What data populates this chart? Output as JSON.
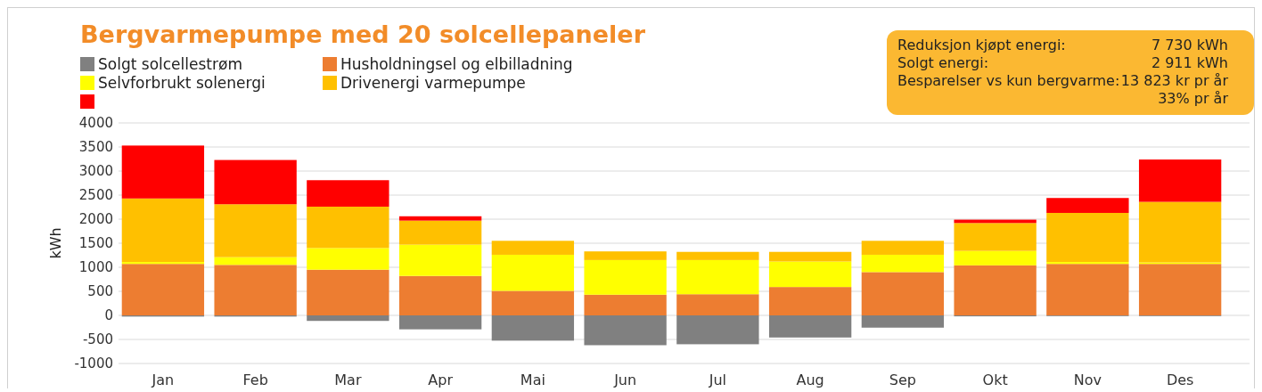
{
  "chart_data": {
    "type": "bar",
    "title": "Bergvarmepumpe med 20 solcellepaneler",
    "ylabel": "kWh",
    "stacked": true,
    "grid": "y",
    "legend": "top left",
    "categories": [
      "Jan",
      "Feb",
      "Mar",
      "Apr",
      "Mai",
      "Jun",
      "Jul",
      "Aug",
      "Sep",
      "Okt",
      "Nov",
      "Des"
    ],
    "ylim": [
      -1000,
      4000
    ],
    "yticks": [
      -1000,
      -500,
      0,
      500,
      1000,
      1500,
      2000,
      2500,
      3000,
      3500,
      4000
    ],
    "series": [
      {
        "name": "Solgt solcellestrøm",
        "color": "#808080",
        "values": [
          -25,
          -25,
          -115,
          -290,
          -525,
          -620,
          -600,
          -460,
          -255,
          -20,
          -15,
          -15
        ]
      },
      {
        "name": "Husholdningsel og elbilladning",
        "color": "#ed7d31",
        "values": [
          1070,
          1050,
          950,
          820,
          510,
          430,
          440,
          590,
          900,
          1040,
          1070,
          1070
        ]
      },
      {
        "name": "Selvforbrukt solenergi",
        "color": "#ffff00",
        "values": [
          40,
          160,
          450,
          650,
          750,
          720,
          710,
          530,
          360,
          300,
          40,
          30
        ]
      },
      {
        "name": "Drivenergi varmepumpe",
        "color": "#ffc000",
        "values": [
          1320,
          1100,
          860,
          500,
          290,
          180,
          170,
          200,
          290,
          580,
          1020,
          1260
        ]
      },
      {
        "color": "#ff0000",
        "values": [
          1100,
          920,
          550,
          90,
          0,
          0,
          0,
          0,
          0,
          70,
          310,
          880
        ]
      }
    ],
    "annotations": [
      "Reduksjon kjøpt energi:",
      "7 730 kWh",
      "Solgt energi:",
      "2 911 kWh",
      "Besparelser vs kun bergvarme:",
      "13 823 kr pr år",
      "33% pr år"
    ]
  }
}
